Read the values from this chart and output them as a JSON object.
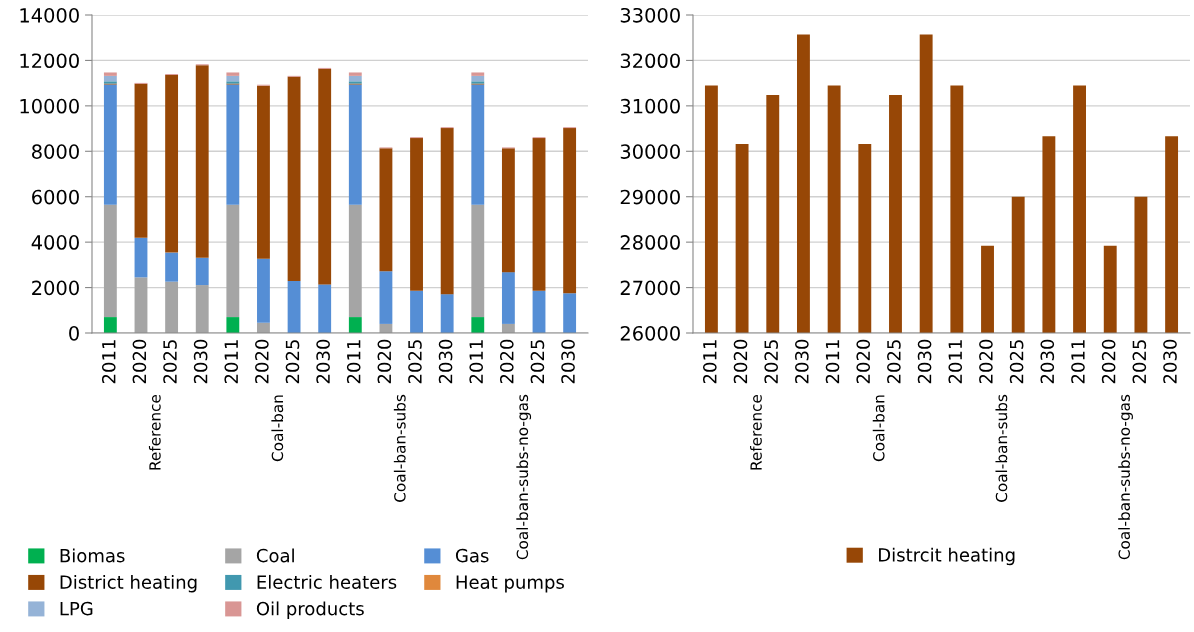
{
  "chart_data": [
    {
      "type": "bar",
      "stacked": true,
      "categories": [
        "2011",
        "2020",
        "2025",
        "2030",
        "2011",
        "2020",
        "2025",
        "2030",
        "2011",
        "2020",
        "2025",
        "2030",
        "2011",
        "2020",
        "2025",
        "2030"
      ],
      "annotations": [
        "Reference",
        "Coal-ban",
        "Coal-ban-subs",
        "Coal-ban-subs-no-gas"
      ],
      "series": [
        {
          "name": "Biomas",
          "color": "#00b050",
          "values": [
            700,
            0,
            0,
            0,
            700,
            0,
            0,
            0,
            700,
            0,
            0,
            0,
            700,
            0,
            0,
            0
          ]
        },
        {
          "name": "Coal",
          "color": "#a5a5a5",
          "values": [
            4950,
            2450,
            2260,
            2110,
            4950,
            450,
            0,
            0,
            4950,
            400,
            0,
            0,
            4950,
            400,
            0,
            0
          ]
        },
        {
          "name": "Gas",
          "color": "#558ed5",
          "values": [
            5290,
            1740,
            1280,
            1200,
            5290,
            2820,
            2290,
            2140,
            5290,
            2320,
            1860,
            1710,
            5290,
            2280,
            1860,
            1750
          ]
        },
        {
          "name": "District heating",
          "color": "#974706",
          "values": [
            40,
            6780,
            7820,
            8480,
            40,
            7620,
            8990,
            9490,
            40,
            5410,
            6720,
            7310,
            40,
            5450,
            6720,
            7270
          ]
        },
        {
          "name": "Electric heaters",
          "color": "#4198af",
          "values": [
            100,
            0,
            0,
            0,
            100,
            0,
            0,
            0,
            100,
            0,
            0,
            0,
            100,
            0,
            0,
            0
          ]
        },
        {
          "name": "Heat pumps",
          "color": "#e0883c",
          "values": [
            0,
            0,
            0,
            0,
            0,
            0,
            0,
            0,
            0,
            0,
            0,
            0,
            0,
            0,
            0,
            0
          ]
        },
        {
          "name": "LPG",
          "color": "#95b3d7",
          "values": [
            240,
            0,
            0,
            0,
            240,
            0,
            0,
            0,
            240,
            0,
            0,
            0,
            240,
            0,
            0,
            0
          ]
        },
        {
          "name": "Oil products",
          "color": "#d99694",
          "values": [
            150,
            40,
            40,
            40,
            150,
            40,
            40,
            40,
            150,
            40,
            40,
            40,
            150,
            40,
            40,
            40
          ]
        }
      ],
      "ylim": [
        0,
        14000
      ],
      "yticks": [
        0,
        2000,
        4000,
        6000,
        8000,
        10000,
        12000,
        14000
      ],
      "grid": "y",
      "legend": "bottom"
    },
    {
      "type": "bar",
      "categories": [
        "2011",
        "2020",
        "2025",
        "2030",
        "2011",
        "2020",
        "2025",
        "2030",
        "2011",
        "2020",
        "2025",
        "2030",
        "2011",
        "2020",
        "2025",
        "2030"
      ],
      "annotations": [
        "Reference",
        "Coal-ban",
        "Coal-ban-subs",
        "Coal-ban-subs-no-gas"
      ],
      "series": [
        {
          "name": "Distrcit heating",
          "color": "#974706",
          "values": [
            31450,
            30160,
            31240,
            32570,
            31450,
            30160,
            31240,
            32570,
            31450,
            27920,
            29000,
            30330,
            31450,
            27920,
            29000,
            30330
          ]
        }
      ],
      "ylim": [
        26000,
        33000
      ],
      "yticks": [
        26000,
        27000,
        28000,
        29000,
        30000,
        31000,
        32000,
        33000
      ],
      "grid": "y",
      "legend": "bottom"
    }
  ]
}
